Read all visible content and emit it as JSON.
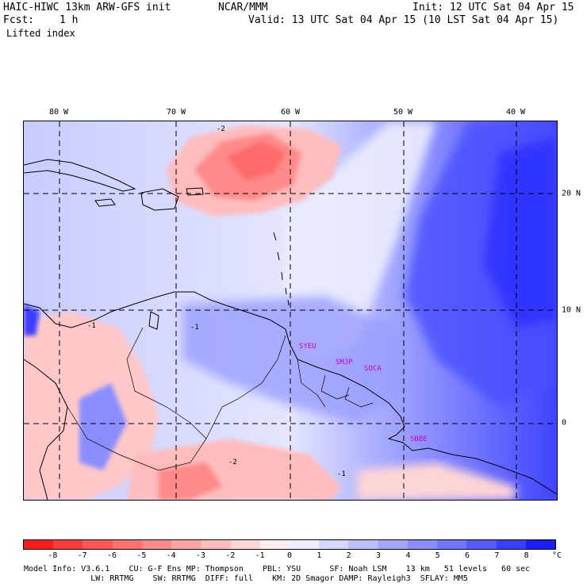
{
  "header": {
    "model": "HAIC-HIWC 13km ARW-GFS init",
    "org": "NCAR/MMM",
    "init": "Init: 12 UTC Sat 04 Apr 15",
    "fcst_label": "Fcst:",
    "fcst_value": "1 h",
    "valid": "Valid: 13 UTC Sat 04 Apr 15 (10 LST Sat 04 Apr 15)",
    "field": "Lifted index"
  },
  "map": {
    "longitudes": [
      "80 W",
      "70 W",
      "60 W",
      "50 W",
      "40 W"
    ],
    "latitudes": [
      "20 N",
      "10 N",
      "0"
    ],
    "stations": [
      "SYEU",
      "SMJP",
      "SOCA",
      "SBBE"
    ],
    "contour_labels": [
      "-2",
      "-1",
      "-1",
      "-2",
      "-1"
    ]
  },
  "colorbar": {
    "labels": [
      "-8",
      "-7",
      "-6",
      "-5",
      "-4",
      "-3",
      "-2",
      "-1",
      "0",
      "1",
      "2",
      "3",
      "4",
      "5",
      "6",
      "7",
      "8"
    ],
    "unit": "°C",
    "colors": [
      "#ff1a1a",
      "#ff3a3a",
      "#ff5555",
      "#ff7070",
      "#ff8a8a",
      "#ffa3a3",
      "#ffbcbc",
      "#ffd6d6",
      "#ffeef0",
      "#eef0ff",
      "#d6d8ff",
      "#bcbeff",
      "#a3a6ff",
      "#8a8dff",
      "#7075ff",
      "#555aff",
      "#3a3eff",
      "#1a1eff"
    ]
  },
  "footer": {
    "line1": "Model Info: V3.6.1    CU: G-F Ens MP: Thompson    PBL: YSU      SF: Noah LSM    13 km   51 levels   60 sec",
    "line2": "              LW: RRTMG    SW: RRTMG  DIFF: full    KM: 2D Smagor DAMP: Rayleigh3  SFLAY: MM5"
  }
}
